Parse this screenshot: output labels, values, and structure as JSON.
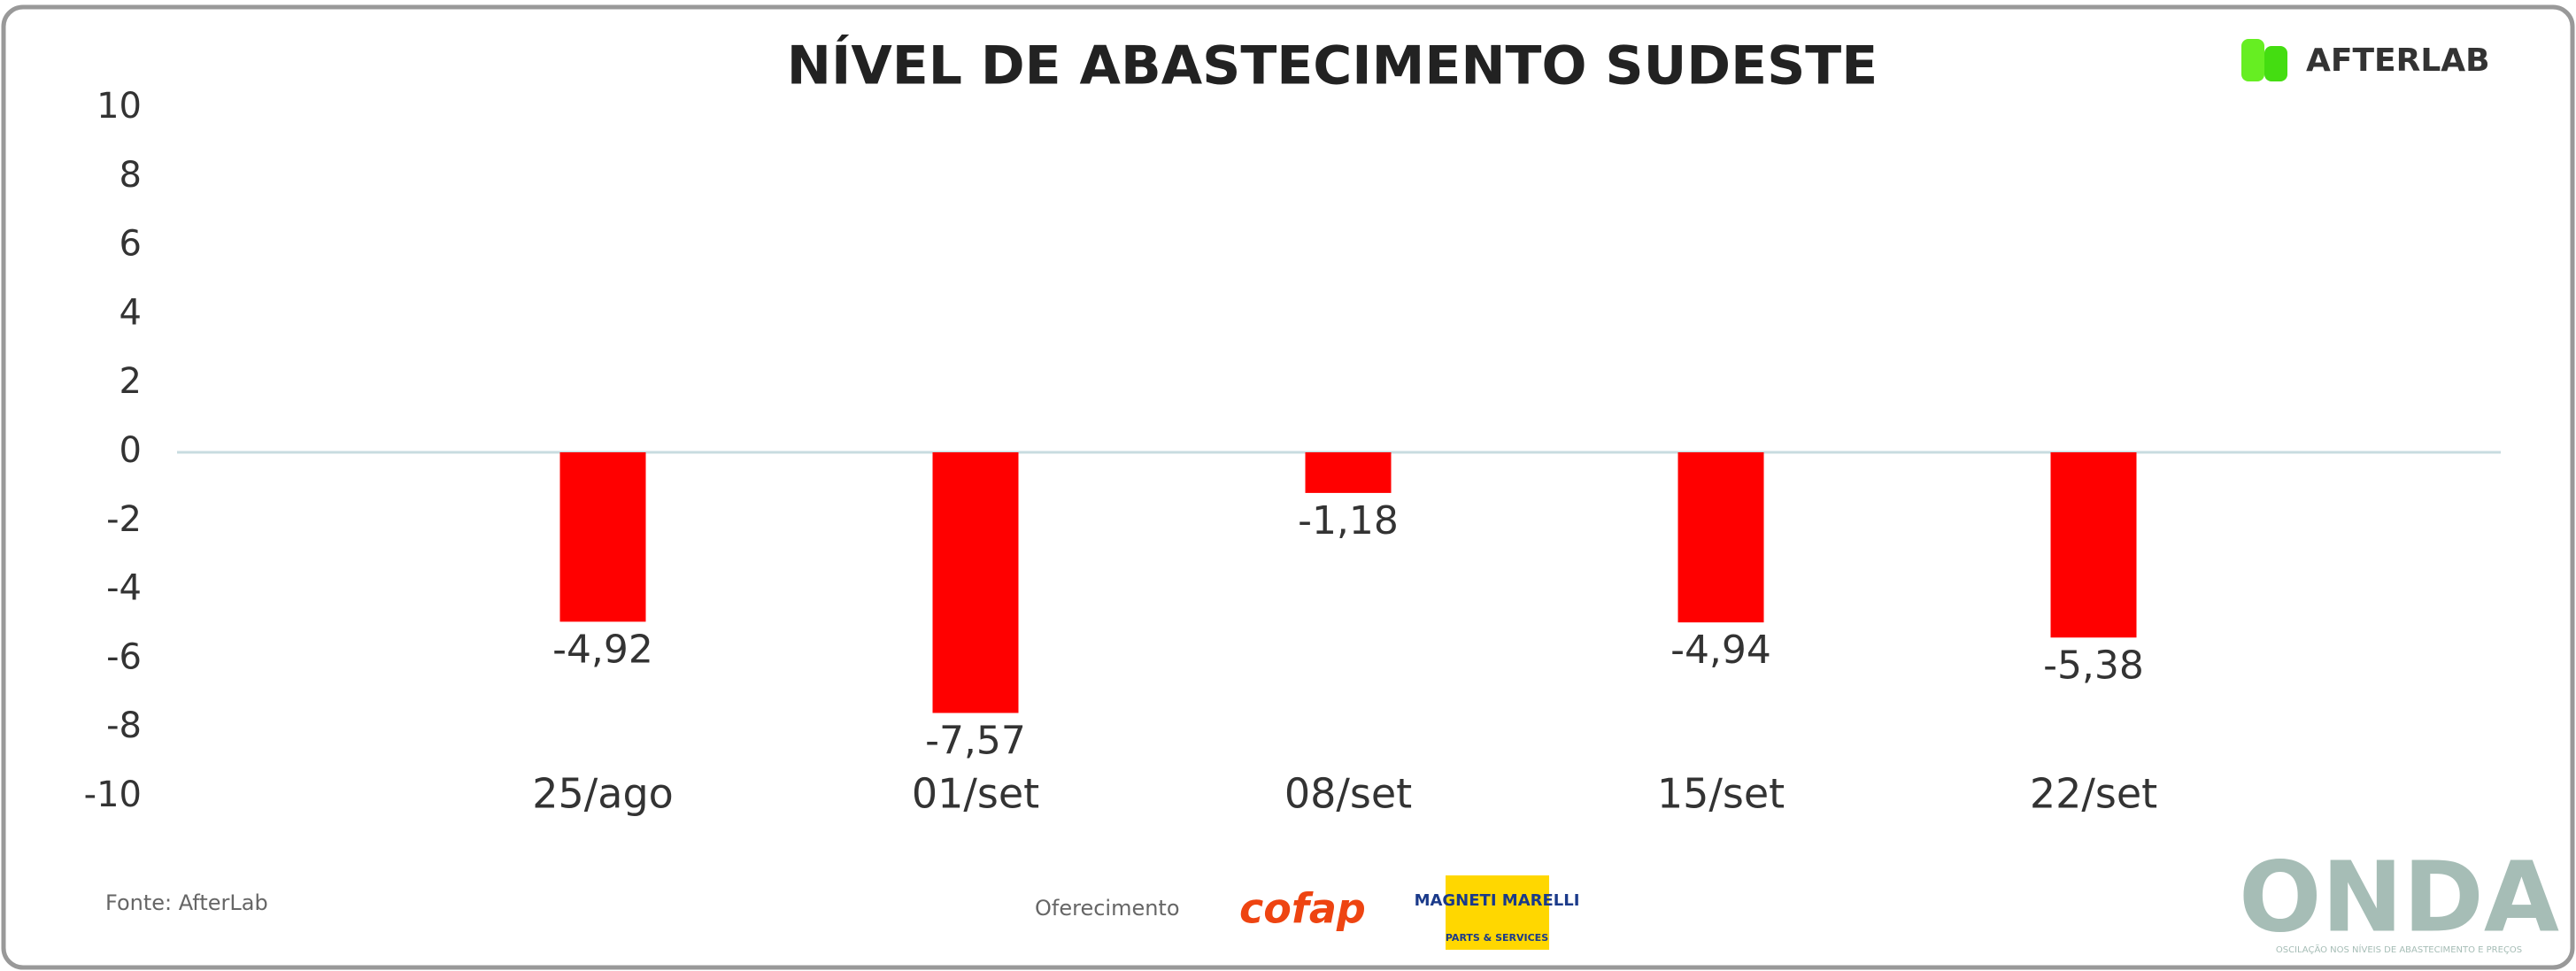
{
  "chart_data": {
    "type": "bar",
    "title": "NÍVEL DE ABASTECIMENTO SUDESTE",
    "categories": [
      "25/ago",
      "01/set",
      "08/set",
      "15/set",
      "22/set"
    ],
    "values": [
      -4.92,
      -7.57,
      -1.18,
      -4.94,
      -5.38
    ],
    "value_labels": [
      "-4,92",
      "-7,57",
      "-1,18",
      "-4,94",
      "-5,38"
    ],
    "color": "#ff0000",
    "ylim": [
      -10,
      10
    ],
    "yticks": [
      -10,
      -8,
      -6,
      -4,
      -2,
      0,
      2,
      4,
      6,
      8,
      10
    ],
    "grid": false
  },
  "brand": "AFTERLAB",
  "source": "Fonte: AfterLab",
  "sponsor_label": "Oferecimento",
  "sponsors": [
    "cofap",
    "MAGNETI MARELLI",
    "PARTS & SERVICES"
  ],
  "footer_logo": "ONDA",
  "footer_tagline": "OSCILAÇÃO NOS NÍVEIS DE ABASTECIMENTO E PREÇOS"
}
